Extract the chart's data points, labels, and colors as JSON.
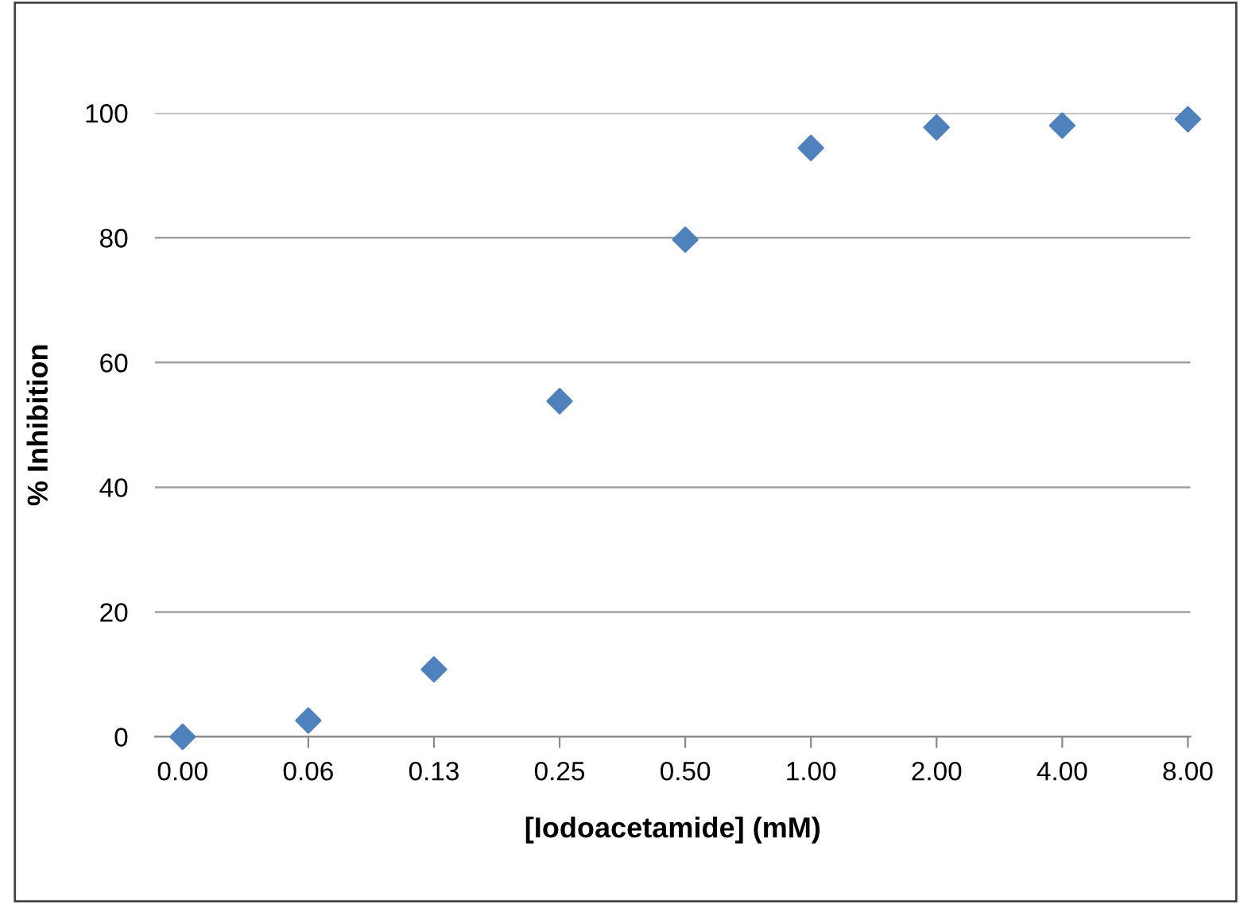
{
  "chart_data": {
    "type": "scatter",
    "xlabel": "[Iodoacetamide] (mM)",
    "ylabel": "% Inhibition",
    "categories": [
      "0.00",
      "0.06",
      "0.13",
      "0.25",
      "0.50",
      "1.00",
      "2.00",
      "4.00",
      "8.00"
    ],
    "series": [
      {
        "color": "#4f81bd",
        "values": [
          0,
          2.6,
          10.8,
          53.8,
          79.7,
          94.4,
          97.7,
          98,
          99
        ]
      }
    ],
    "ylim": [
      0,
      100
    ],
    "yticks": [
      0,
      20,
      40,
      60,
      80,
      100
    ],
    "grid": "y",
    "marker": "diamond",
    "legend": false
  }
}
